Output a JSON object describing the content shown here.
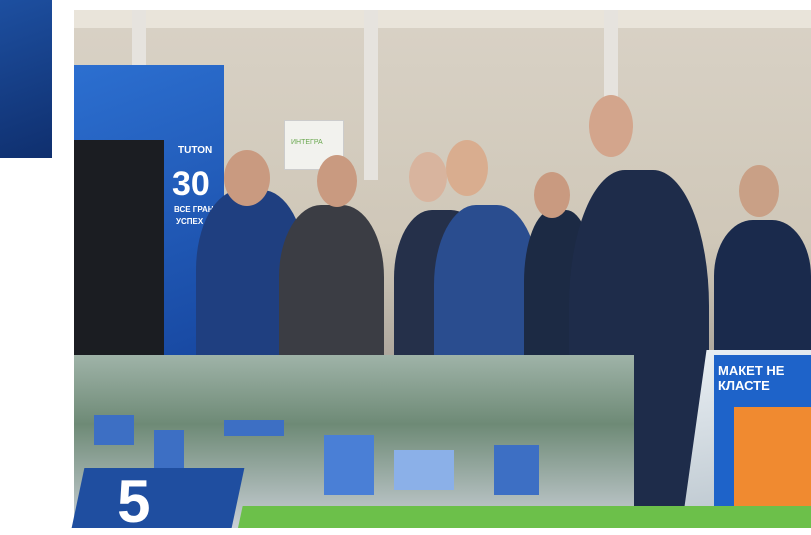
{
  "booth": {
    "logo": "TUTON",
    "number": "30",
    "line1": "ВСЕ ГРАНИ",
    "line2": "УСПЕХ"
  },
  "sign": {
    "text": "ИНТЕГРА"
  },
  "stand": {
    "line1": "МАКЕТ НЕ",
    "line2": "КЛАСТЕ"
  },
  "badge": {
    "number": "5"
  },
  "colors": {
    "brand_blue": "#1f4ea0",
    "accent_green": "#6cc04a"
  }
}
